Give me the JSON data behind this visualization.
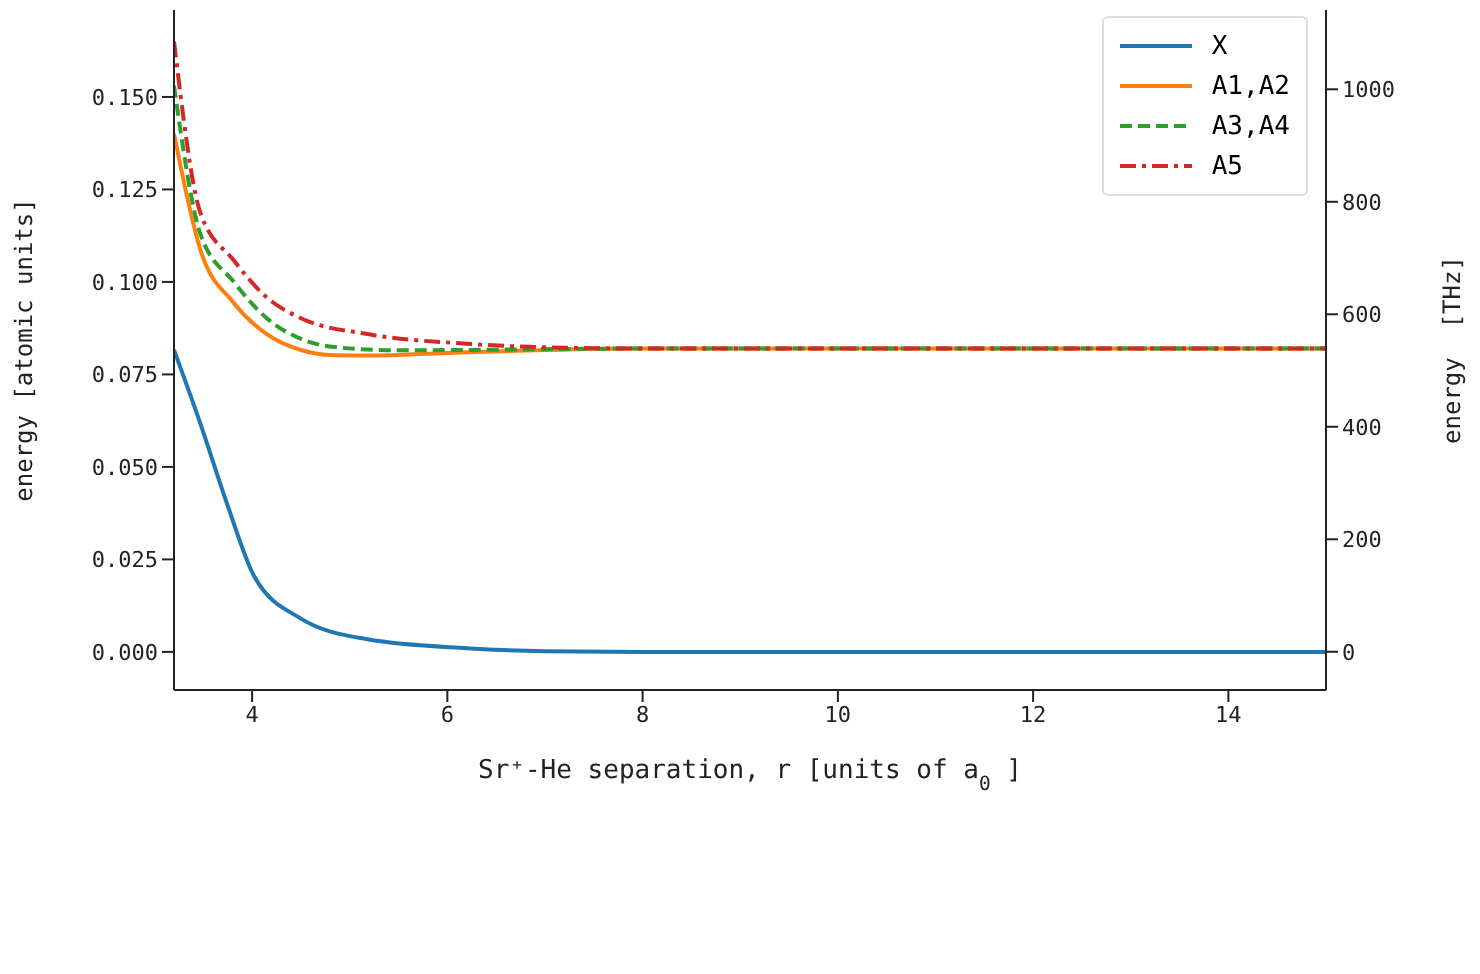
{
  "chart_data": {
    "type": "line",
    "xlabel": "Sr⁺-He separation, r [units of a$_{0}$]",
    "ylabel": "energy [atomic units]",
    "y2label": "energy  [THz]",
    "xlim": [
      3.2,
      15
    ],
    "xticks": [
      4,
      6,
      8,
      10,
      12,
      14
    ],
    "ylim": [
      -0.0103,
      0.1735
    ],
    "yticks": [
      {
        "value": 0,
        "label": "0.000"
      },
      {
        "value": 0.025,
        "label": "0.025"
      },
      {
        "value": 0.05,
        "label": "0.050"
      },
      {
        "value": 0.075,
        "label": "0.075"
      },
      {
        "value": 0.1,
        "label": "0.100"
      },
      {
        "value": 0.125,
        "label": "0.125"
      },
      {
        "value": 0.15,
        "label": "0.150"
      }
    ],
    "y2lim": [
      -68,
      1141
    ],
    "y2ticks": [
      0,
      200,
      400,
      600,
      800,
      1000
    ],
    "legend": "top right",
    "marker": "none",
    "series": [
      {
        "name": "X",
        "color": "#1f77b4",
        "line_style": "solid",
        "x": [
          3.2,
          3.47,
          3.74,
          4.02,
          4.5,
          5.18,
          6.2,
          7,
          8,
          10,
          12,
          15
        ],
        "values": [
          0.0816,
          0.0617,
          0.0403,
          0.0205,
          0.009,
          0.0034,
          0.001,
          0.0002,
          0,
          0,
          0,
          0
        ]
      },
      {
        "name": "A1,A2",
        "color": "#ff7f0e",
        "line_style": "solid",
        "x": [
          3.2,
          3.47,
          3.81,
          4.15,
          4.5,
          4.84,
          5.2,
          6,
          7,
          8,
          10,
          12,
          15
        ],
        "values": [
          0.14,
          0.1087,
          0.0944,
          0.0859,
          0.0816,
          0.0802,
          0.0801,
          0.0808,
          0.0816,
          0.082,
          0.082,
          0.082,
          0.082
        ]
      },
      {
        "name": "A3,A4",
        "color": "#2ca02c",
        "line_style": "dashed",
        "x": [
          3.2,
          3.47,
          3.81,
          4.15,
          4.5,
          4.84,
          5.5,
          6.5,
          8,
          10,
          12,
          15
        ],
        "values": [
          0.153,
          0.113,
          0.1001,
          0.0902,
          0.0846,
          0.0824,
          0.0815,
          0.0817,
          0.082,
          0.082,
          0.082,
          0.082
        ]
      },
      {
        "name": "A5",
        "color": "#d62728",
        "line_style": "dashdot",
        "x": [
          3.2,
          3.47,
          3.81,
          4.15,
          4.5,
          5.18,
          6.2,
          6.9,
          8,
          10,
          12,
          15
        ],
        "values": [
          0.165,
          0.1187,
          0.1059,
          0.0958,
          0.0902,
          0.0859,
          0.0833,
          0.0824,
          0.082,
          0.082,
          0.082,
          0.082
        ]
      }
    ]
  }
}
